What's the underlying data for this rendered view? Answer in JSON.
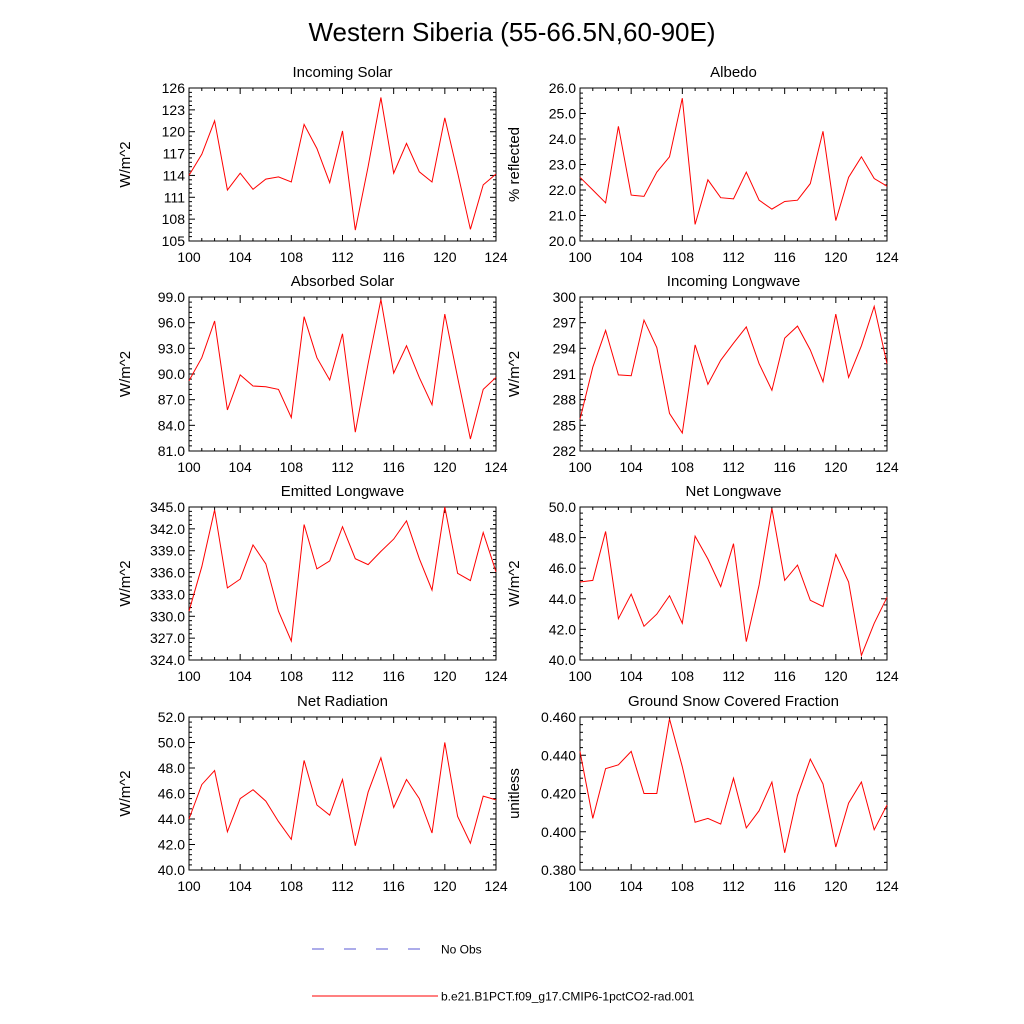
{
  "figure": {
    "title": "Western Siberia (55-66.5N,60-90E)",
    "legend": [
      {
        "label": "No Obs",
        "color": "#5a5ad6",
        "style": "dashed"
      },
      {
        "label": "b.e21.B1PCT.f09_g17.CMIP6-1pctCO2-rad.001",
        "color": "#ff0000",
        "style": "solid"
      }
    ]
  },
  "chart_data": [
    {
      "type": "line",
      "title": "Incoming Solar",
      "ylabel": "W/m^2",
      "xlim": [
        100,
        124
      ],
      "ylim": [
        105,
        126
      ],
      "xticks": [
        "100",
        "104",
        "108",
        "112",
        "116",
        "120",
        "124"
      ],
      "yticks": [
        "105",
        "108",
        "111",
        "114",
        "117",
        "120",
        "123",
        "126"
      ],
      "series": [
        {
          "color": "#ff0000",
          "x": [
            100,
            101,
            102,
            103,
            104,
            105,
            106,
            107,
            108,
            109,
            110,
            111,
            112,
            113,
            114,
            115,
            116,
            117,
            118,
            119,
            120,
            121,
            122,
            123,
            124
          ],
          "values": [
            114.0,
            116.9,
            121.5,
            112.0,
            114.3,
            112.1,
            113.5,
            113.8,
            113.1,
            121.0,
            117.7,
            113.0,
            120.1,
            106.5,
            115.2,
            124.7,
            114.3,
            118.4,
            114.5,
            113.1,
            121.9,
            114.4,
            106.6,
            112.7,
            114.2
          ]
        }
      ]
    },
    {
      "type": "line",
      "title": "Albedo",
      "ylabel": "% reflected",
      "xlim": [
        100,
        124
      ],
      "ylim": [
        20.0,
        26.0
      ],
      "xticks": [
        "100",
        "104",
        "108",
        "112",
        "116",
        "120",
        "124"
      ],
      "yticks": [
        "20.0",
        "21.0",
        "22.0",
        "23.0",
        "24.0",
        "25.0",
        "26.0"
      ],
      "series": [
        {
          "color": "#ff0000",
          "x": [
            100,
            101,
            102,
            103,
            104,
            105,
            106,
            107,
            108,
            109,
            110,
            111,
            112,
            113,
            114,
            115,
            116,
            117,
            118,
            119,
            120,
            121,
            122,
            123,
            124
          ],
          "values": [
            22.5,
            22.0,
            21.5,
            24.5,
            21.8,
            21.75,
            22.7,
            23.3,
            25.6,
            20.65,
            22.4,
            21.7,
            21.65,
            22.7,
            21.6,
            21.25,
            21.55,
            21.6,
            22.25,
            24.3,
            20.8,
            22.5,
            23.3,
            22.45,
            22.15
          ]
        }
      ]
    },
    {
      "type": "line",
      "title": "Absorbed Solar",
      "ylabel": "W/m^2",
      "xlim": [
        100,
        124
      ],
      "ylim": [
        81.0,
        99.0
      ],
      "xticks": [
        "100",
        "104",
        "108",
        "112",
        "116",
        "120",
        "124"
      ],
      "yticks": [
        "81.0",
        "84.0",
        "87.0",
        "90.0",
        "93.0",
        "96.0",
        "99.0"
      ],
      "series": [
        {
          "color": "#ff0000",
          "x": [
            100,
            101,
            102,
            103,
            104,
            105,
            106,
            107,
            108,
            109,
            110,
            111,
            112,
            113,
            114,
            115,
            116,
            117,
            118,
            119,
            120,
            121,
            122,
            123,
            124
          ],
          "values": [
            89.2,
            91.9,
            96.2,
            85.8,
            89.9,
            88.6,
            88.5,
            88.2,
            84.9,
            96.7,
            91.9,
            89.3,
            94.7,
            83.2,
            91.2,
            98.7,
            90.1,
            93.3,
            89.6,
            86.4,
            97.0,
            89.6,
            82.4,
            88.2,
            89.6
          ]
        }
      ]
    },
    {
      "type": "line",
      "title": "Incoming Longwave",
      "ylabel": "W/m^2",
      "xlim": [
        100,
        124
      ],
      "ylim": [
        282,
        300
      ],
      "xticks": [
        "100",
        "104",
        "108",
        "112",
        "116",
        "120",
        "124"
      ],
      "yticks": [
        "282",
        "285",
        "288",
        "291",
        "294",
        "297",
        "300"
      ],
      "series": [
        {
          "color": "#ff0000",
          "x": [
            100,
            101,
            102,
            103,
            104,
            105,
            106,
            107,
            108,
            109,
            110,
            111,
            112,
            113,
            114,
            115,
            116,
            117,
            118,
            119,
            120,
            121,
            122,
            123,
            124
          ],
          "values": [
            285.7,
            291.8,
            296.1,
            290.9,
            290.8,
            297.3,
            294.1,
            286.4,
            284.1,
            294.4,
            289.8,
            292.6,
            294.6,
            296.5,
            292.2,
            289.1,
            295.2,
            296.6,
            293.8,
            290.1,
            298.0,
            290.6,
            294.3,
            298.9,
            292.2
          ]
        }
      ]
    },
    {
      "type": "line",
      "title": "Emitted Longwave",
      "ylabel": "W/m^2",
      "xlim": [
        100,
        124
      ],
      "ylim": [
        324.0,
        345.0
      ],
      "xticks": [
        "100",
        "104",
        "108",
        "112",
        "116",
        "120",
        "124"
      ],
      "yticks": [
        "324.0",
        "327.0",
        "330.0",
        "333.0",
        "336.0",
        "339.0",
        "342.0",
        "345.0"
      ],
      "series": [
        {
          "color": "#ff0000",
          "x": [
            100,
            101,
            102,
            103,
            104,
            105,
            106,
            107,
            108,
            109,
            110,
            111,
            112,
            113,
            114,
            115,
            116,
            117,
            118,
            119,
            120,
            121,
            122,
            123,
            124
          ],
          "values": [
            330.7,
            336.8,
            344.6,
            333.9,
            335.1,
            339.8,
            337.2,
            330.7,
            326.6,
            342.6,
            336.5,
            337.6,
            342.3,
            337.9,
            337.1,
            338.9,
            340.6,
            343.1,
            337.9,
            333.6,
            345.0,
            335.9,
            334.9,
            341.5,
            336.1
          ]
        }
      ]
    },
    {
      "type": "line",
      "title": "Net Longwave",
      "ylabel": "W/m^2",
      "xlim": [
        100,
        124
      ],
      "ylim": [
        40.0,
        50.0
      ],
      "xticks": [
        "100",
        "104",
        "108",
        "112",
        "116",
        "120",
        "124"
      ],
      "yticks": [
        "40.0",
        "42.0",
        "44.0",
        "46.0",
        "48.0",
        "50.0"
      ],
      "series": [
        {
          "color": "#ff0000",
          "x": [
            100,
            101,
            102,
            103,
            104,
            105,
            106,
            107,
            108,
            109,
            110,
            111,
            112,
            113,
            114,
            115,
            116,
            117,
            118,
            119,
            120,
            121,
            122,
            123,
            124
          ],
          "values": [
            45.1,
            45.2,
            48.4,
            42.7,
            44.3,
            42.2,
            43.0,
            44.2,
            42.4,
            48.1,
            46.6,
            44.8,
            47.6,
            41.2,
            44.9,
            49.9,
            45.2,
            46.2,
            43.9,
            43.5,
            46.9,
            45.1,
            40.3,
            42.4,
            44.1
          ]
        }
      ]
    },
    {
      "type": "line",
      "title": "Net Radiation",
      "ylabel": "W/m^2",
      "xlim": [
        100,
        124
      ],
      "ylim": [
        40.0,
        52.0
      ],
      "xticks": [
        "100",
        "104",
        "108",
        "112",
        "116",
        "120",
        "124"
      ],
      "yticks": [
        "40.0",
        "42.0",
        "44.0",
        "46.0",
        "48.0",
        "50.0",
        "52.0"
      ],
      "series": [
        {
          "color": "#ff0000",
          "x": [
            100,
            101,
            102,
            103,
            104,
            105,
            106,
            107,
            108,
            109,
            110,
            111,
            112,
            113,
            114,
            115,
            116,
            117,
            118,
            119,
            120,
            121,
            122,
            123,
            124
          ],
          "values": [
            44.0,
            46.7,
            47.8,
            43.0,
            45.6,
            46.3,
            45.4,
            43.8,
            42.4,
            48.6,
            45.1,
            44.3,
            47.1,
            41.9,
            46.1,
            48.8,
            44.9,
            47.1,
            45.6,
            42.9,
            50.0,
            44.2,
            42.1,
            45.8,
            45.5
          ]
        }
      ]
    },
    {
      "type": "line",
      "title": "Ground Snow Covered Fraction",
      "ylabel": "unitless",
      "xlim": [
        100,
        124
      ],
      "ylim": [
        0.38,
        0.46
      ],
      "xticks": [
        "100",
        "104",
        "108",
        "112",
        "116",
        "120",
        "124"
      ],
      "yticks": [
        "0.380",
        "0.400",
        "0.420",
        "0.440",
        "0.460"
      ],
      "series": [
        {
          "color": "#ff0000",
          "x": [
            100,
            101,
            102,
            103,
            104,
            105,
            106,
            107,
            108,
            109,
            110,
            111,
            112,
            113,
            114,
            115,
            116,
            117,
            118,
            119,
            120,
            121,
            122,
            123,
            124
          ],
          "values": [
            0.442,
            0.407,
            0.433,
            0.435,
            0.442,
            0.42,
            0.42,
            0.459,
            0.434,
            0.405,
            0.407,
            0.404,
            0.428,
            0.402,
            0.411,
            0.426,
            0.389,
            0.419,
            0.438,
            0.425,
            0.392,
            0.415,
            0.426,
            0.401,
            0.414
          ]
        }
      ]
    }
  ]
}
